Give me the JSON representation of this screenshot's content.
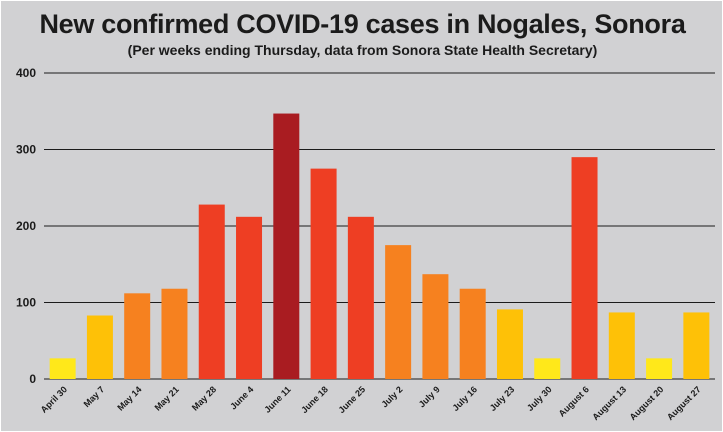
{
  "chart_data": {
    "type": "bar",
    "title": "New confirmed COVID-19 cases in Nogales, Sonora",
    "subtitle": "(Per weeks ending Thursday, data from Sonora State Health Secretary)",
    "categories": [
      "April 30",
      "May 7",
      "May 14",
      "May 21",
      "May 28",
      "June 4",
      "June 11",
      "June 18",
      "June 25",
      "July 2",
      "July 9",
      "July 16",
      "July 23",
      "July 30",
      "August 6",
      "August 13",
      "August 20",
      "August 27"
    ],
    "values": [
      27,
      83,
      112,
      118,
      228,
      212,
      347,
      275,
      212,
      175,
      137,
      118,
      91,
      27,
      290,
      87,
      27,
      87
    ],
    "bar_colors": [
      "#ffe81a",
      "#fec107",
      "#f6811f",
      "#f6811f",
      "#ee3e23",
      "#ee3e23",
      "#a91c21",
      "#ee3e23",
      "#ee3e23",
      "#f6811f",
      "#f6811f",
      "#f6811f",
      "#fec107",
      "#ffe81a",
      "#ee3e23",
      "#fec107",
      "#ffe81a",
      "#fec107"
    ],
    "yticks": [
      0,
      100,
      200,
      300,
      400
    ],
    "ylim": [
      0,
      400
    ],
    "xlabel": "",
    "ylabel": "",
    "grid": true,
    "legend": "none"
  }
}
